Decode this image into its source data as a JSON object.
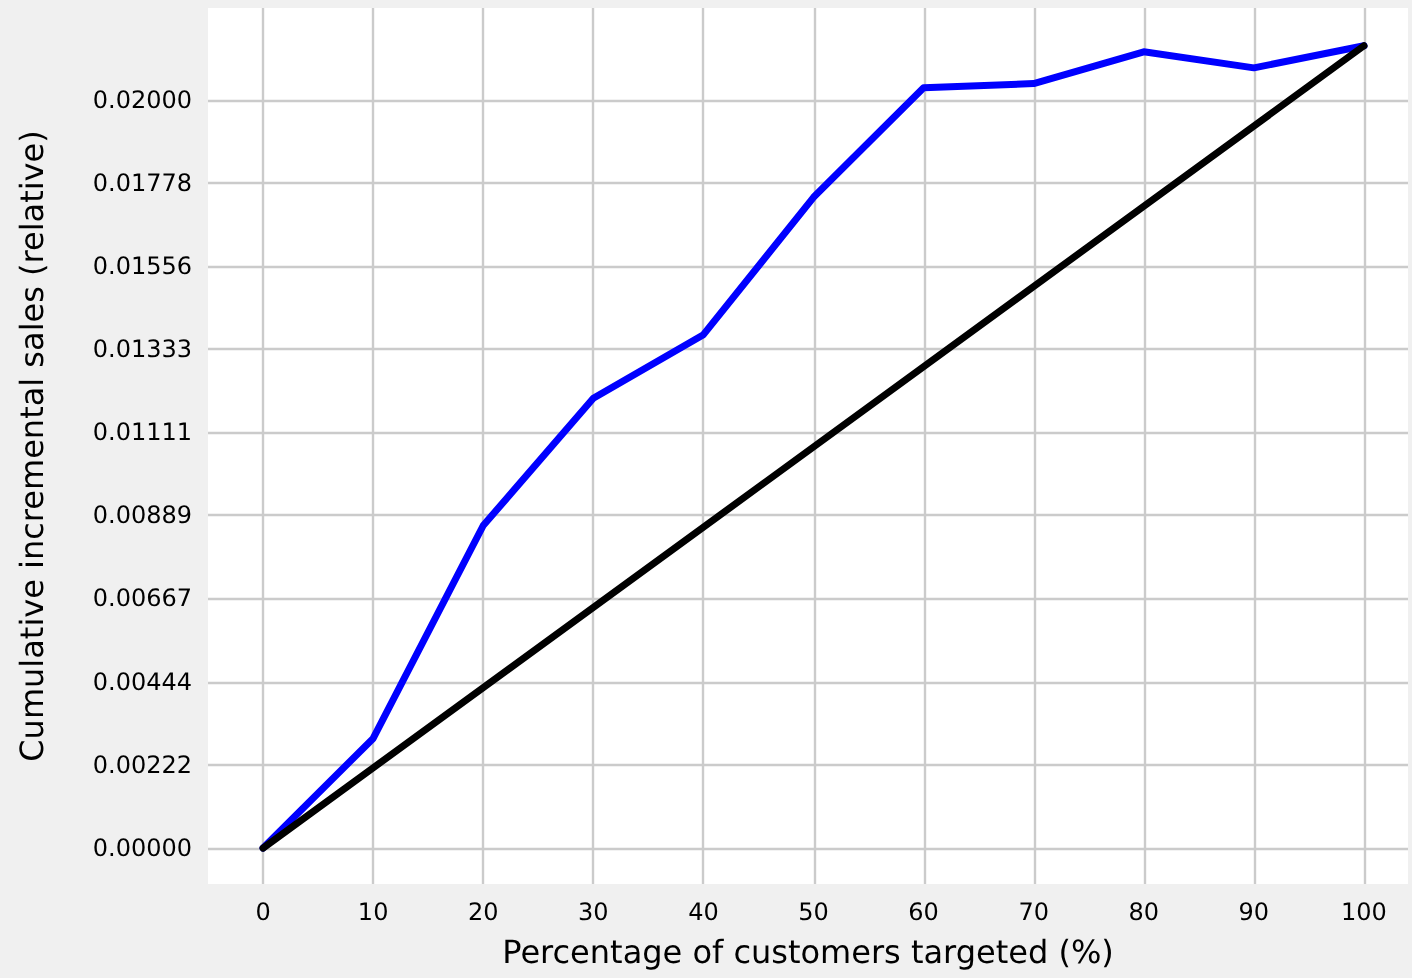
{
  "chart_data": {
    "type": "line",
    "xlabel": "Percentage of customers targeted (%)",
    "ylabel": "Cumulative incremental sales (relative)",
    "series": [
      {
        "color": "#0000ff",
        "x": [
          0,
          10,
          20,
          30,
          40,
          50,
          60,
          70,
          80,
          90,
          100
        ],
        "values": [
          0,
          0.00293,
          0.00862,
          0.01202,
          0.01372,
          0.01739,
          0.02032,
          0.02043,
          0.02128,
          0.02085,
          0.02144
        ]
      },
      {
        "color": "#000000",
        "x": [
          0,
          100
        ],
        "values": [
          0,
          0.02144
        ]
      }
    ],
    "xlim": [
      -5,
      104
    ],
    "xticks": [
      0,
      10,
      20,
      30,
      40,
      50,
      60,
      70,
      80,
      90,
      100
    ],
    "ylim": [
      -0.00096,
      0.02245
    ],
    "yticks": [
      {
        "value": 0,
        "label": "0.00000"
      },
      0.00222,
      0.00444,
      0.00667,
      0.00889,
      0.01111,
      0.01333,
      0.01556,
      0.01778,
      {
        "value": 0.02,
        "label": "0.02000"
      }
    ],
    "grid": true,
    "marker": "none",
    "line_style": "solid"
  }
}
